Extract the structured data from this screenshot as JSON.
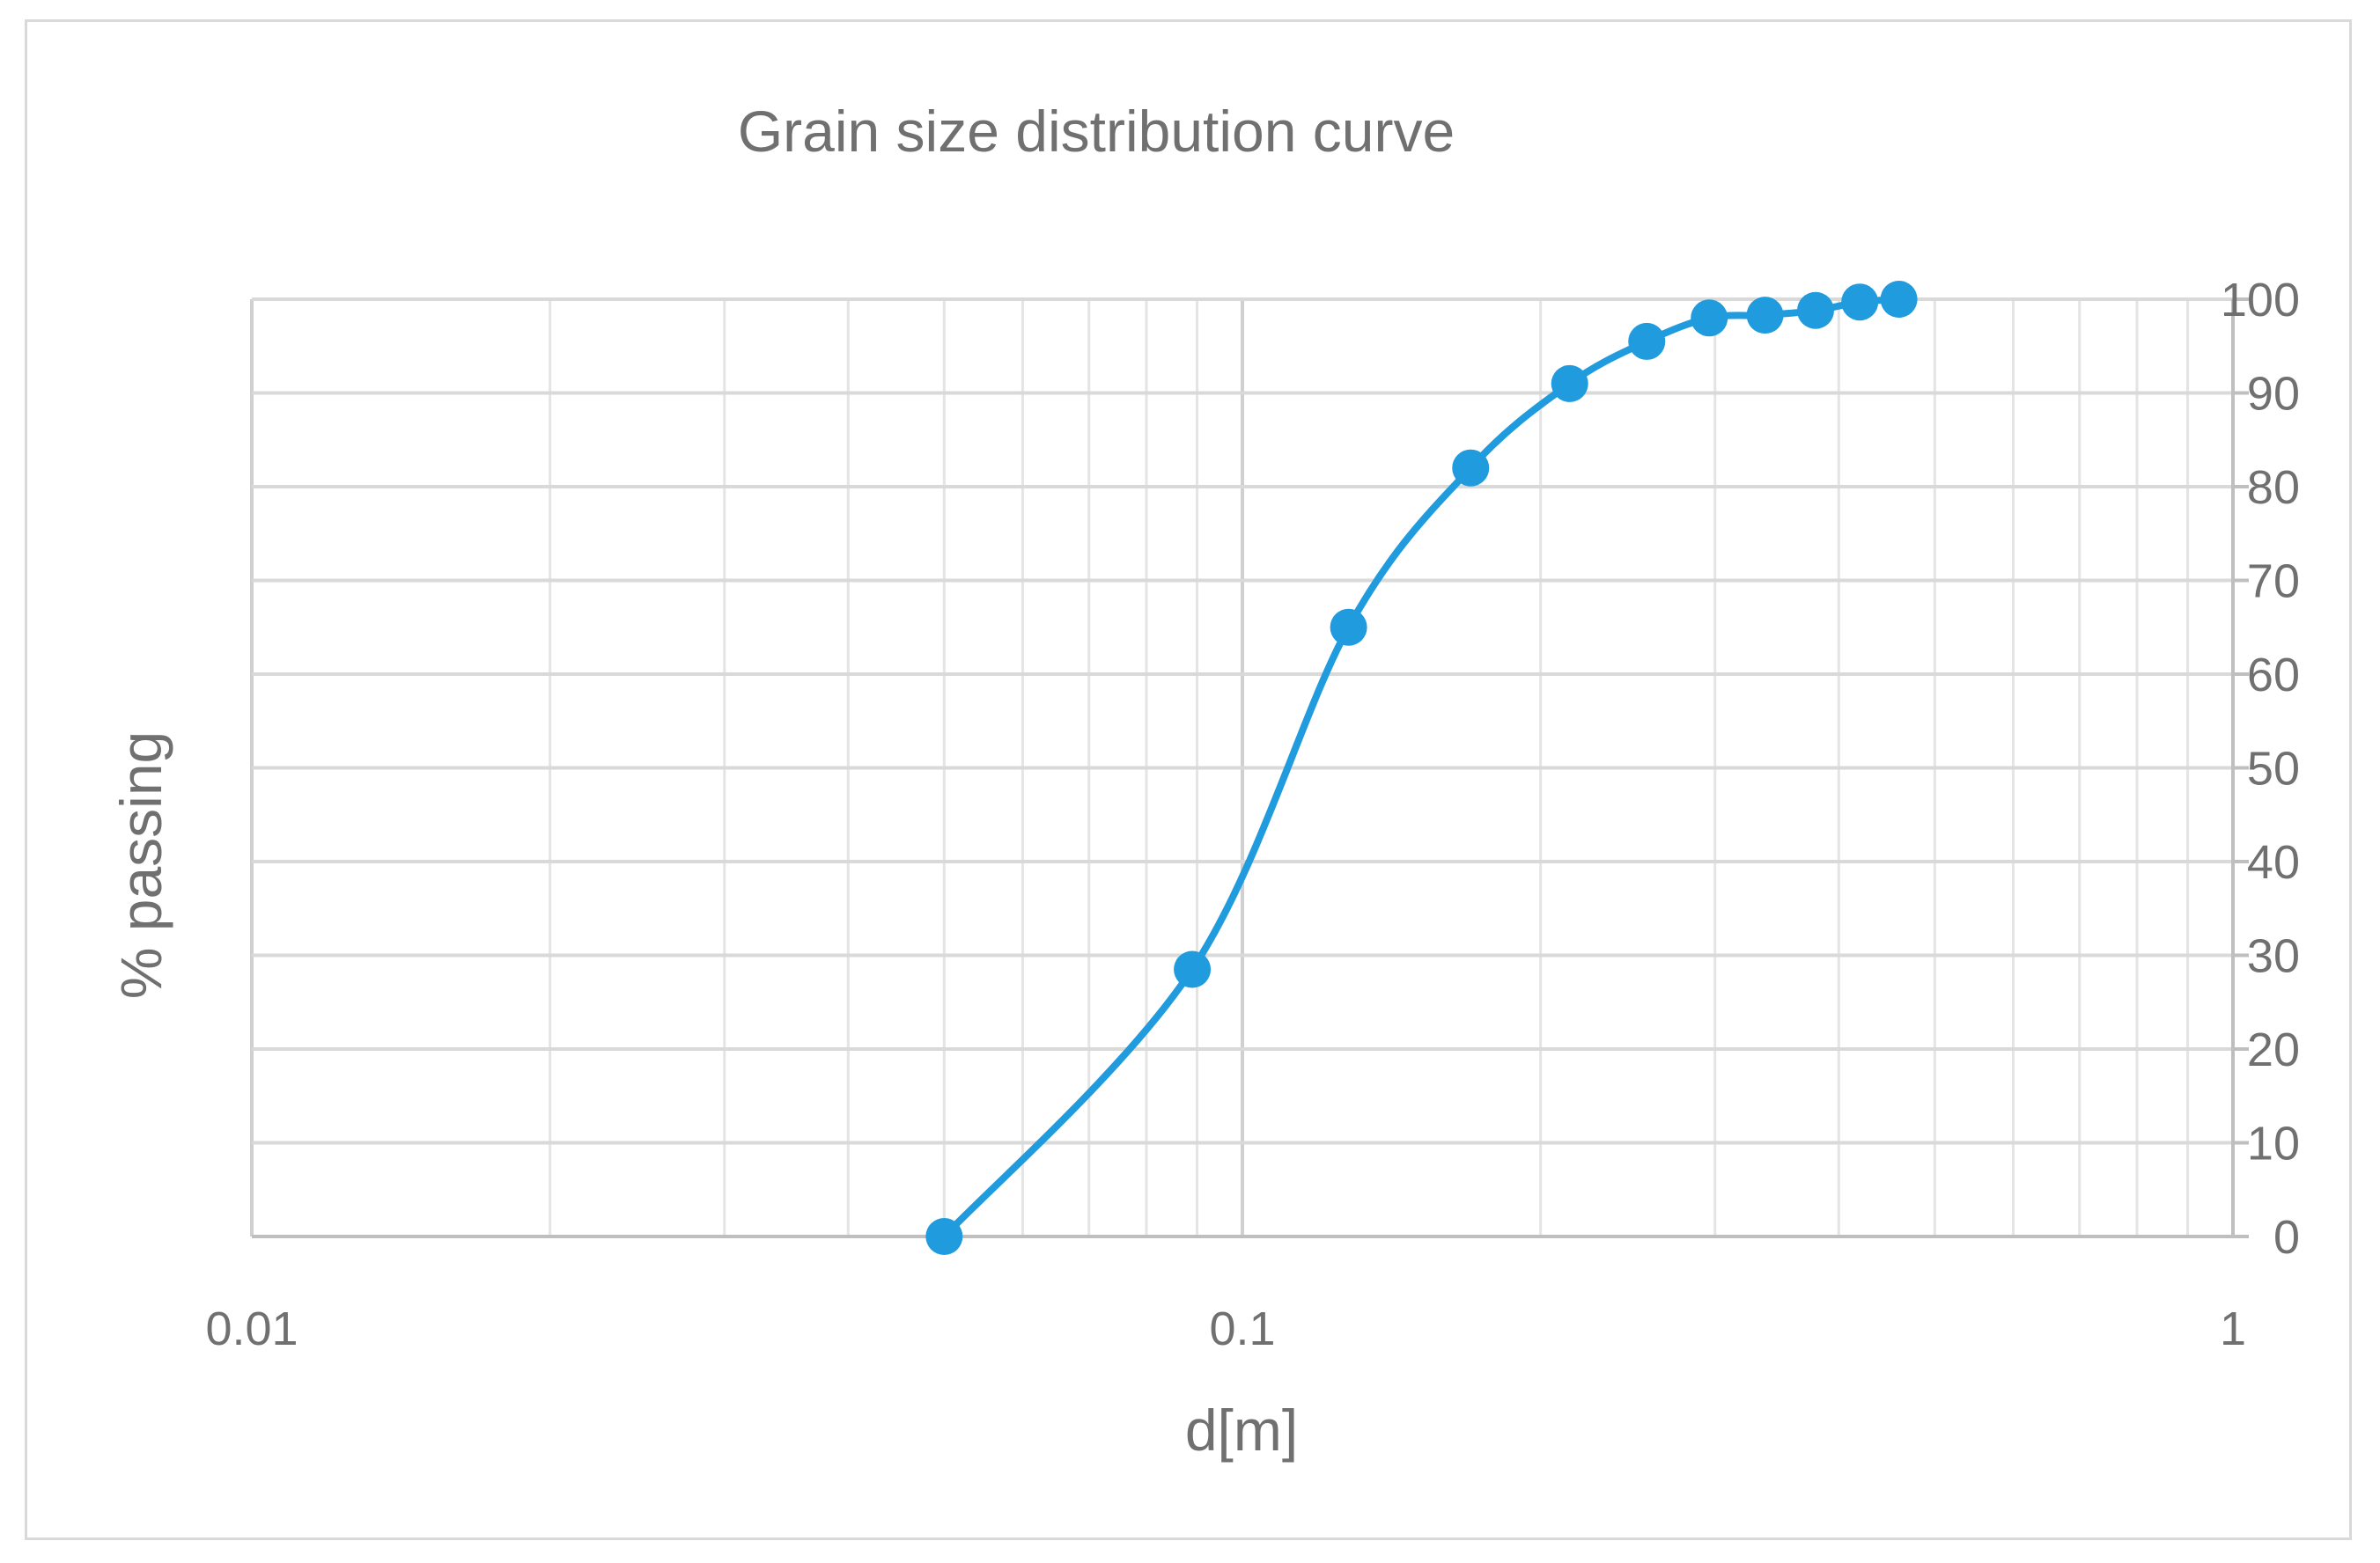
{
  "chart_data": {
    "type": "scatter",
    "title": "Grain size distribution curve",
    "xlabel": "d[m]",
    "ylabel": "% passing",
    "x_scale": "log",
    "xlim": [
      0.01,
      1
    ],
    "ylim": [
      0,
      100
    ],
    "x_ticks": [
      "0.01",
      "0.1",
      "1"
    ],
    "y_ticks": [
      "0",
      "10",
      "20",
      "30",
      "40",
      "50",
      "60",
      "70",
      "80",
      "90",
      "100"
    ],
    "grid": true,
    "legend": "none",
    "color": "#1f9bde",
    "smoothed_line": true,
    "series": [
      {
        "x": [
          0.05,
          0.089,
          0.128,
          0.17,
          0.214,
          0.256,
          0.296,
          0.337,
          0.379,
          0.42,
          0.46
        ],
        "y": [
          0,
          28.5,
          65,
          82,
          91,
          95.5,
          98,
          98.3,
          98.8,
          99.7,
          100
        ]
      }
    ]
  }
}
